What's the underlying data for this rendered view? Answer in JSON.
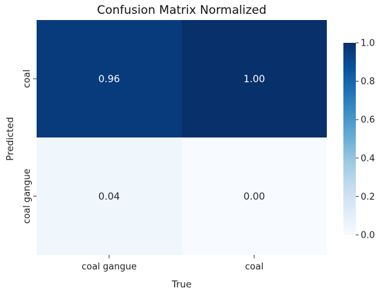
{
  "chart_data": {
    "type": "heatmap",
    "title": "Confusion Matrix Normalized",
    "xlabel": "True",
    "ylabel": "Predicted",
    "x_categories": [
      "coal gangue",
      "coal"
    ],
    "y_categories": [
      "coal",
      "coal gangue"
    ],
    "values": [
      [
        0.96,
        1.0
      ],
      [
        0.04,
        0.0
      ]
    ],
    "value_labels": [
      [
        "0.96",
        "1.00"
      ],
      [
        "0.04",
        "0.00"
      ]
    ],
    "colorbar": {
      "range": [
        0.0,
        1.0
      ],
      "ticks": [
        0.0,
        0.2,
        0.4,
        0.6,
        0.8,
        1.0
      ],
      "tick_labels": [
        "0.0",
        "0.2",
        "0.4",
        "0.6",
        "0.8",
        "1.0"
      ],
      "colormap": "Blues"
    },
    "grid": false,
    "legend": "colorbar-right"
  }
}
